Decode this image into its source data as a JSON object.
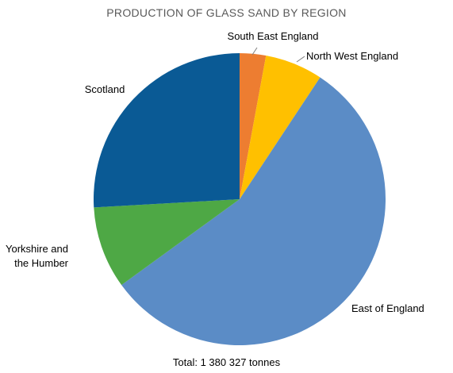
{
  "chart_data": {
    "type": "pie",
    "title": "PRODUCTION OF GLASS SAND BY REGION",
    "footer": "Total: 1 380 327 tonnes",
    "slices": [
      {
        "label": "South East England",
        "value": 2.9,
        "color": "#ED7D31"
      },
      {
        "label": "North West England",
        "value": 6.4,
        "color": "#FFC000"
      },
      {
        "label": "East of England",
        "value": 55.7,
        "color": "#5B8CC6"
      },
      {
        "label": "Yorkshire and the Humber",
        "label_lines": [
          "Yorkshire and",
          "the Humber"
        ],
        "value": 9.1,
        "color": "#4EA845"
      },
      {
        "label": "Scotland",
        "value": 25.9,
        "color": "#0A5A95"
      }
    ],
    "start_angle": "12 o'clock",
    "direction": "clockwise"
  }
}
